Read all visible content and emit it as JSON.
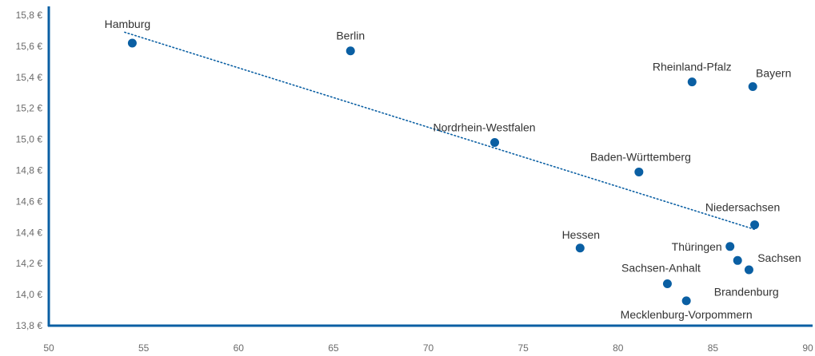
{
  "chart_data": {
    "type": "scatter",
    "title": "",
    "xlabel": "",
    "ylabel": "",
    "xlim": [
      50,
      90
    ],
    "ylim": [
      13.8,
      15.8
    ],
    "x_ticks": [
      50,
      55,
      60,
      65,
      70,
      75,
      80,
      85,
      90
    ],
    "y_ticks": [
      13.8,
      14.0,
      14.2,
      14.4,
      14.6,
      14.8,
      15.0,
      15.2,
      15.4,
      15.6,
      15.8
    ],
    "x_tick_labels": [
      "50",
      "55",
      "60",
      "65",
      "70",
      "75",
      "80",
      "85",
      "90"
    ],
    "y_tick_labels": [
      "13,8 €",
      "14,0 €",
      "14,2 €",
      "14,4 €",
      "14,6 €",
      "14,8 €",
      "15,0 €",
      "15,2 €",
      "15,4 €",
      "15,6 €",
      "15,8 €"
    ],
    "grid": false,
    "colors": {
      "point": "#0a5fa3",
      "axis": "#0a5fa3",
      "trend": "#0a5fa3"
    },
    "points": [
      {
        "label": "Hamburg",
        "x": 54.4,
        "y": 15.62
      },
      {
        "label": "Berlin",
        "x": 65.9,
        "y": 15.57
      },
      {
        "label": "Rheinland-Pfalz",
        "x": 83.9,
        "y": 15.37
      },
      {
        "label": "Bayern",
        "x": 87.1,
        "y": 15.34
      },
      {
        "label": "Nordrhein-Westfalen",
        "x": 73.5,
        "y": 14.98
      },
      {
        "label": "Baden-Württemberg",
        "x": 81.1,
        "y": 14.79
      },
      {
        "label": "Niedersachsen",
        "x": 87.2,
        "y": 14.45
      },
      {
        "label": "Hessen",
        "x": 78.0,
        "y": 14.3
      },
      {
        "label": "Thüringen",
        "x": 85.9,
        "y": 14.31
      },
      {
        "label": "Sachsen",
        "x": 86.9,
        "y": 14.16
      },
      {
        "label": "Brandenburg",
        "x": 86.3,
        "y": 14.22
      },
      {
        "label": "Sachsen-Anhalt",
        "x": 82.6,
        "y": 14.07
      },
      {
        "label": "Mecklenburg-Vorpommern",
        "x": 83.6,
        "y": 13.96
      }
    ],
    "trendline": {
      "x": [
        54.0,
        87.2
      ],
      "y": [
        15.69,
        14.42
      ]
    }
  }
}
